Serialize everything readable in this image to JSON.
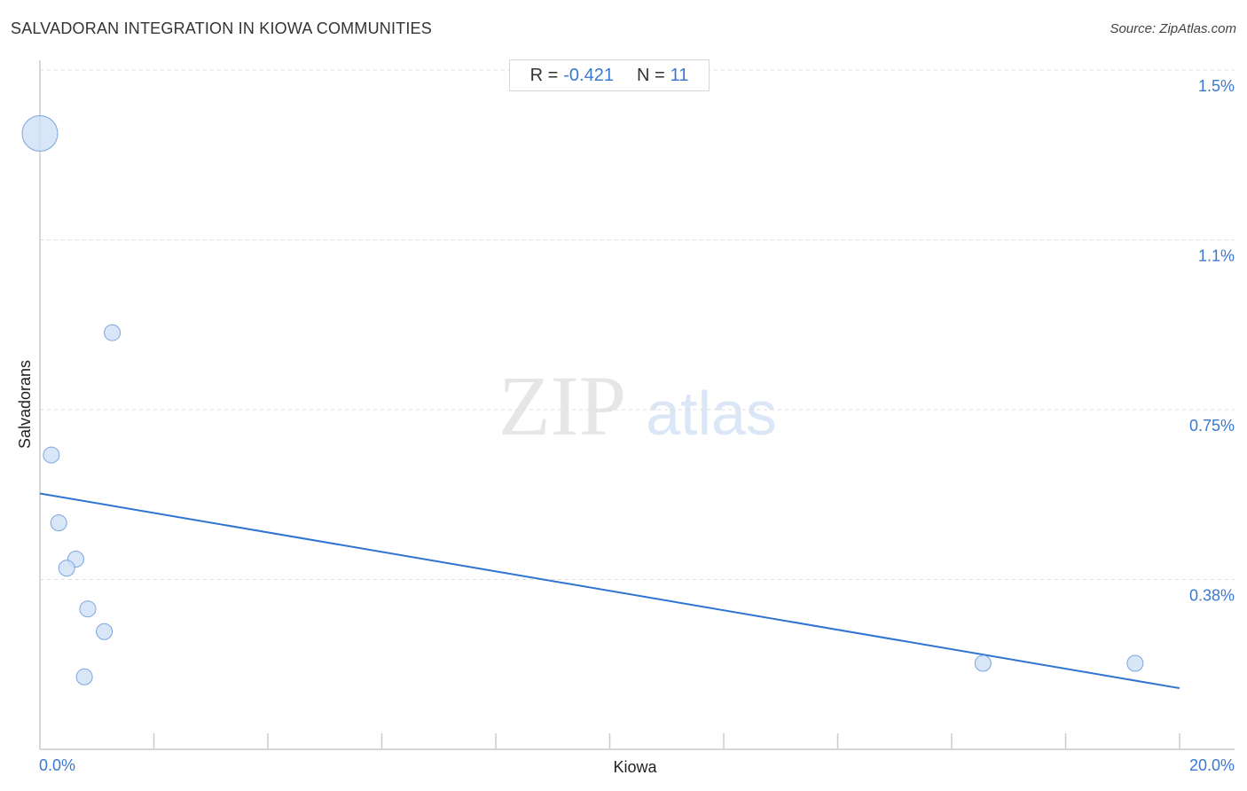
{
  "header": {
    "title": "SALVADORAN INTEGRATION IN KIOWA COMMUNITIES",
    "source": "Source: ZipAtlas.com"
  },
  "stats": {
    "r_label": "R =",
    "r_value": "-0.421",
    "n_label": "N =",
    "n_value": "11"
  },
  "watermark": {
    "zip": "ZIP",
    "atlas": "atlas"
  },
  "colors": {
    "accent": "#3b78d0",
    "point_fill": "#cfe0f6",
    "point_stroke": "#7aa5dd",
    "trend": "#2f74d0",
    "grid": "#dddddd"
  },
  "chart_data": {
    "type": "scatter",
    "xlabel": "Kiowa",
    "ylabel": "Salvadorans",
    "xlim": [
      0,
      20
    ],
    "ylim": [
      0,
      1.5
    ],
    "x_tick_labels": [
      {
        "value": 0,
        "label": "0.0%"
      },
      {
        "value": 20,
        "label": "20.0%"
      }
    ],
    "y_tick_labels": [
      {
        "value": 1.5,
        "label": "1.5%"
      },
      {
        "value": 1.125,
        "label": "1.1%"
      },
      {
        "value": 0.75,
        "label": "0.75%"
      },
      {
        "value": 0.375,
        "label": "0.38%"
      }
    ],
    "points": [
      {
        "x": 0.0,
        "y": 1.36,
        "size": 3
      },
      {
        "x": 1.27,
        "y": 0.92,
        "size": 1
      },
      {
        "x": 0.2,
        "y": 0.65,
        "size": 1
      },
      {
        "x": 0.33,
        "y": 0.5,
        "size": 1
      },
      {
        "x": 0.63,
        "y": 0.42,
        "size": 1
      },
      {
        "x": 0.47,
        "y": 0.4,
        "size": 1
      },
      {
        "x": 0.84,
        "y": 0.31,
        "size": 1
      },
      {
        "x": 1.13,
        "y": 0.26,
        "size": 1
      },
      {
        "x": 0.78,
        "y": 0.16,
        "size": 1
      },
      {
        "x": 16.55,
        "y": 0.19,
        "size": 1
      },
      {
        "x": 19.22,
        "y": 0.19,
        "size": 1
      }
    ],
    "trendline": {
      "x": [
        0,
        20
      ],
      "y": [
        0.565,
        0.135
      ]
    }
  }
}
